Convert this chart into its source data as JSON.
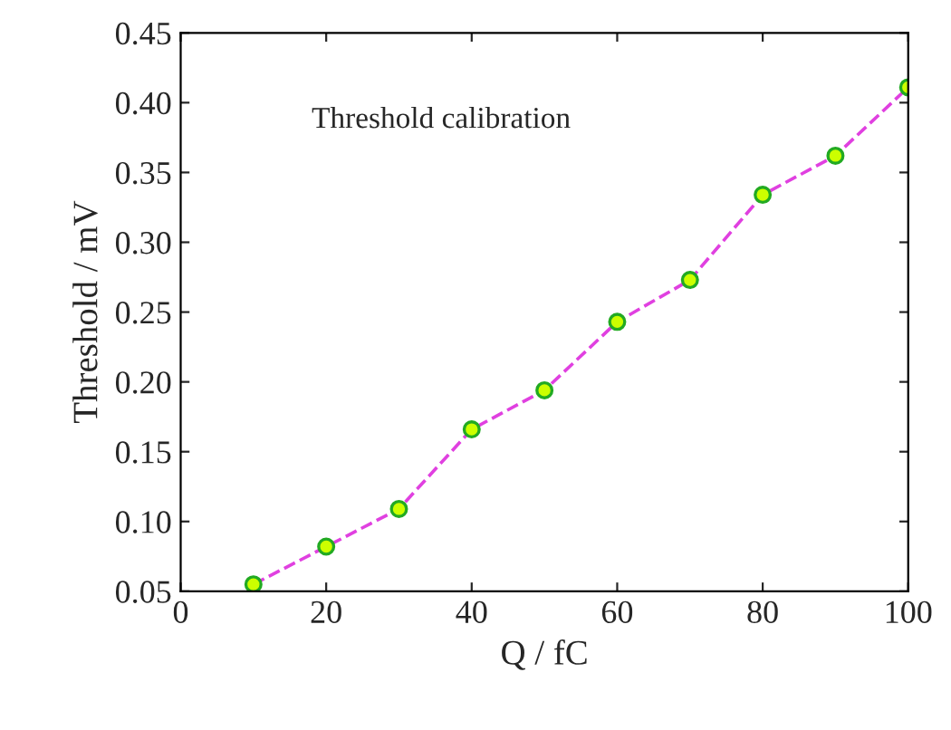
{
  "chart_data": {
    "type": "line",
    "xlabel": "Q / fC",
    "ylabel": "Threshold / mV",
    "annotations": [
      "Threshold calibration"
    ],
    "x": [
      10,
      20,
      30,
      40,
      50,
      60,
      70,
      80,
      90,
      100
    ],
    "series": [
      {
        "color": "#e040e0",
        "values": [
          0.055,
          0.082,
          0.109,
          0.166,
          0.194,
          0.243,
          0.273,
          0.334,
          0.362,
          0.411
        ]
      }
    ],
    "xlim": [
      0,
      100
    ],
    "xticks": [
      0,
      20,
      40,
      60,
      80,
      100
    ],
    "ylim": [
      0.05,
      0.45
    ],
    "yticks": [
      {
        "value": 0.05,
        "label": "0.05"
      },
      {
        "value": 0.1,
        "label": "0.10"
      },
      {
        "value": 0.15,
        "label": "0.15"
      },
      {
        "value": 0.2,
        "label": "0.20"
      },
      {
        "value": 0.25,
        "label": "0.25"
      },
      {
        "value": 0.3,
        "label": "0.30"
      },
      {
        "value": 0.35,
        "label": "0.35"
      },
      {
        "value": 0.4,
        "label": "0.40"
      },
      {
        "value": 0.45,
        "label": "0.45"
      }
    ],
    "marker": "circle",
    "line_style": "dashed",
    "grid": false,
    "legend": false
  }
}
